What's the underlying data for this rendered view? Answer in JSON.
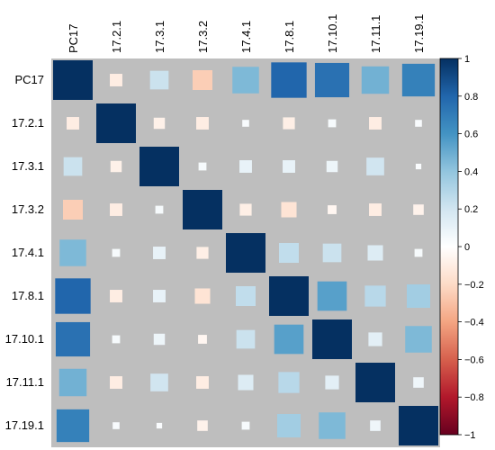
{
  "chart_data": {
    "type": "heatmap",
    "title": "",
    "variables": [
      "PC17",
      "17.2.1",
      "17.3.1",
      "17.3.2",
      "17.4.1",
      "17.8.1",
      "17.10.1",
      "17.11.1",
      "17.19.1"
    ],
    "matrix": [
      [
        1.0,
        -0.1,
        0.22,
        -0.25,
        0.45,
        0.8,
        0.75,
        0.48,
        0.68
      ],
      [
        -0.1,
        1.0,
        -0.08,
        -0.1,
        0.03,
        -0.09,
        0.04,
        -0.1,
        0.03
      ],
      [
        0.22,
        -0.08,
        1.0,
        0.04,
        0.1,
        0.1,
        0.08,
        0.2,
        0.02
      ],
      [
        -0.25,
        -0.1,
        0.04,
        1.0,
        -0.09,
        -0.15,
        -0.05,
        -0.1,
        -0.07
      ],
      [
        0.45,
        0.04,
        0.1,
        -0.09,
        1.0,
        0.25,
        0.22,
        0.15,
        0.04
      ],
      [
        0.8,
        -0.1,
        0.1,
        -0.15,
        0.25,
        1.0,
        0.55,
        0.28,
        0.35
      ],
      [
        0.75,
        0.04,
        0.08,
        -0.05,
        0.22,
        0.55,
        1.0,
        0.12,
        0.45
      ],
      [
        0.48,
        -0.1,
        0.2,
        -0.1,
        0.15,
        0.28,
        0.12,
        1.0,
        0.07
      ],
      [
        0.68,
        0.03,
        0.02,
        -0.07,
        0.04,
        0.35,
        0.45,
        0.07,
        1.0
      ]
    ],
    "colorbar": {
      "range": [
        -1,
        1
      ],
      "ticks": [
        "1",
        "0.8",
        "0.6",
        "0.4",
        "0.2",
        "0",
        "−0.2",
        "−0.4",
        "−0.6",
        "−0.8",
        "−1"
      ],
      "tick_values": [
        1,
        0.8,
        0.6,
        0.4,
        0.2,
        0,
        -0.2,
        -0.4,
        -0.6,
        -0.8,
        -1
      ]
    },
    "colors": {
      "background": "#bebebe",
      "positive_max": "#053061",
      "neutral": "#ffffff",
      "negative_max": "#67001f"
    },
    "grid": false,
    "legend_position": "right"
  }
}
